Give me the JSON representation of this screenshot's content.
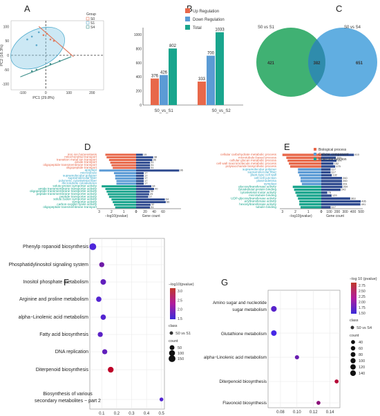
{
  "chart_data": [
    {
      "panel": "A",
      "type": "scatter",
      "xlabel": "PC1 (29.8%)",
      "ylabel": "PC2 (16.3%)",
      "xticks": [
        "-100",
        "0",
        "100",
        "200"
      ],
      "yticks": [
        "100",
        "50",
        "0",
        "-50",
        "-100"
      ],
      "legend_title": "Group",
      "legend": [
        "S0",
        "S1",
        "S4"
      ],
      "series": [
        {
          "name": "S0",
          "color": "#e07b5f",
          "points": [
            [
              -10,
              70
            ],
            [
              20,
              55
            ],
            [
              35,
              50
            ],
            [
              5,
              75
            ]
          ]
        },
        {
          "name": "S1",
          "color": "#5aa7c9",
          "points": [
            [
              -80,
              55
            ],
            [
              -40,
              35
            ],
            [
              -60,
              65
            ],
            [
              -30,
              80
            ]
          ]
        },
        {
          "name": "S4",
          "color": "#3f8f8a",
          "points": [
            [
              -60,
              -55
            ],
            [
              -40,
              -50
            ],
            [
              20,
              -30
            ],
            [
              60,
              -20
            ]
          ]
        }
      ]
    },
    {
      "panel": "B",
      "type": "bar",
      "categories": [
        "S0_vs_S1",
        "S0_vs_S2"
      ],
      "series": [
        {
          "name": "Up Regulation",
          "color": "#e8684a",
          "values": [
            376,
            333
          ]
        },
        {
          "name": "Down Regulation",
          "color": "#5b9bd5",
          "values": [
            426,
            700
          ]
        },
        {
          "name": "Total",
          "color": "#19a58d",
          "values": [
            802,
            1033
          ]
        }
      ],
      "ylim": [
        0,
        1000
      ],
      "yticks": [
        "0",
        "200",
        "400",
        "600",
        "800",
        "1000"
      ],
      "value_labels": [
        "376",
        "426",
        "802",
        "333",
        "700",
        "1033"
      ]
    },
    {
      "panel": "C",
      "type": "venn",
      "sets": [
        {
          "name": "S0 vs S1",
          "color": "#1fa35a",
          "only": 421
        },
        {
          "name": "S0 vs S4",
          "color": "#3a9ad9",
          "only": 651
        }
      ],
      "intersection": 382
    },
    {
      "panel": "D",
      "type": "bar",
      "xlabel_left": "−log10(pvalue)",
      "xlabel_right": "Gene count",
      "left_ticks": [
        "3",
        "2",
        "1",
        "0"
      ],
      "right_ticks": [
        "0",
        "20",
        "40",
        "60"
      ],
      "categories": [
        {
          "label": "iron ion homeostasis",
          "class": "bp",
          "p": 2.5,
          "count": 15
        },
        {
          "label": "mitochondrial transport",
          "class": "bp",
          "p": 2.4,
          "count": 38
        },
        {
          "label": "transition metal ion transport",
          "class": "bp",
          "p": 2.2,
          "count": 36
        },
        {
          "label": "amide transport",
          "class": "bp",
          "p": 2.1,
          "count": 31
        },
        {
          "label": "oligopeptide transmembrane transport",
          "class": "bp",
          "p": 2.0,
          "count": 31
        },
        {
          "label": "oligopeptide transport",
          "class": "bp",
          "p": 1.9,
          "count": 31
        },
        {
          "label": "apoplast",
          "class": "cc",
          "p": 3.0,
          "count": 96
        },
        {
          "label": "microtubule",
          "class": "cc",
          "p": 1.8,
          "count": 17
        },
        {
          "label": "supramolecular polymer",
          "class": "cc",
          "p": 1.7,
          "count": 17
        },
        {
          "label": "supramolecular fiber",
          "class": "cc",
          "p": 1.7,
          "count": 17
        },
        {
          "label": "polymeric cytoskeletal fiber",
          "class": "cc",
          "p": 1.6,
          "count": 17
        },
        {
          "label": "microtubule cytoskeleton",
          "class": "cc",
          "p": 1.6,
          "count": 17
        },
        {
          "label": "solute:proton symporter activity",
          "class": "mf",
          "p": 2.8,
          "count": 34
        },
        {
          "label": "amide transmembrane transporter activity",
          "class": "mf",
          "p": 2.5,
          "count": 40
        },
        {
          "label": "oligopeptide transmembrane transporter activity",
          "class": "mf",
          "p": 2.4,
          "count": 30
        },
        {
          "label": "peptide transmembrane transporter activity",
          "class": "mf",
          "p": 2.3,
          "count": 29
        },
        {
          "label": "peptide transporter activity",
          "class": "mf",
          "p": 2.2,
          "count": 27
        },
        {
          "label": "solute:cation symporter activity",
          "class": "mf",
          "p": 2.0,
          "count": 64
        },
        {
          "label": "symporter activity",
          "class": "mf",
          "p": 1.9,
          "count": 66
        },
        {
          "label": "carbon-oxygen lyase activity",
          "class": "mf",
          "p": 1.8,
          "count": 32
        },
        {
          "label": "oligopeptide transmembrane transport",
          "class": "mf",
          "p": 1.7,
          "count": 31
        }
      ],
      "count_labels": [
        "15",
        "38",
        "36",
        "31",
        "31",
        "31",
        "96",
        "17",
        "17",
        "17",
        "17",
        "17",
        "34",
        "40",
        "30",
        "29",
        "27",
        "64",
        "66",
        "32",
        "31"
      ]
    },
    {
      "panel": "E",
      "type": "bar",
      "xlabel_left": "−log10(pvalue)",
      "xlabel_right": "Gene count",
      "left_ticks": [
        "3",
        "2",
        "1",
        "0"
      ],
      "right_ticks": [
        "0",
        "100",
        "200",
        "300",
        "400",
        "500"
      ],
      "legend": [
        {
          "name": "Biological process",
          "color": "#e8684a"
        },
        {
          "name": "Cellular component",
          "color": "#5b9bd5"
        },
        {
          "name": "Molecular function",
          "color": "#19a58d"
        }
      ],
      "categories": [
        {
          "label": "cellular carbohydrate metabolic process",
          "class": "bp",
          "p": 3.0,
          "count": 410
        },
        {
          "label": "microtubule-based process",
          "class": "bp",
          "p": 2.7,
          "count": 183
        },
        {
          "label": "cellular glucan metabolic process",
          "class": "bp",
          "p": 2.6,
          "count": 191
        },
        {
          "label": "cell wall macromolecule metabolic process",
          "class": "bp",
          "p": 2.5,
          "count": 152
        },
        {
          "label": "polysaccharide biosynthetic process",
          "class": "bp",
          "p": 2.4,
          "count": 175
        },
        {
          "label": "supramolecular polymer",
          "class": "cc",
          "p": 1.8,
          "count": 117
        },
        {
          "label": "supramolecular fiber",
          "class": "cc",
          "p": 1.8,
          "count": 117
        },
        {
          "label": "plant-type cell wall",
          "class": "cc",
          "p": 1.7,
          "count": 132
        },
        {
          "label": "cell-cell junction",
          "class": "cc",
          "p": 1.6,
          "count": 260
        },
        {
          "label": "plasmodesma",
          "class": "cc",
          "p": 1.6,
          "count": 260
        },
        {
          "label": "symplast",
          "class": "cc",
          "p": 1.5,
          "count": 261
        },
        {
          "label": "glucosyltransferase activity",
          "class": "mf",
          "p": 2.2,
          "count": 264
        },
        {
          "label": "cytoskeletal protein binding",
          "class": "mf",
          "p": 2.1,
          "count": 242
        },
        {
          "label": "cytoskeletal motor activity",
          "class": "mf",
          "p": 2.0,
          "count": 75
        },
        {
          "label": "microtubule binding",
          "class": "mf",
          "p": 1.9,
          "count": 129
        },
        {
          "label": "UDP-glycosyltransferase activity",
          "class": "mf",
          "p": 1.8,
          "count": 363
        },
        {
          "label": "acyltransferase activity",
          "class": "mf",
          "p": 1.7,
          "count": 495
        },
        {
          "label": "hexosyltransferase activity",
          "class": "mf",
          "p": 1.7,
          "count": 491
        },
        {
          "label": "tubulin binding",
          "class": "mf",
          "p": 1.6,
          "count": 117
        }
      ],
      "count_labels": [
        "410",
        "183",
        "191",
        "152",
        "175",
        "117",
        "117",
        "132",
        "260",
        "260",
        "261",
        "264",
        "242",
        "75",
        "129",
        "363",
        "495",
        "491",
        "117"
      ]
    },
    {
      "panel": "F",
      "type": "scatter",
      "pathways": [
        "Phenylp ropanoid biosynthesis",
        "Phosphatidylinositol signaling system",
        "Inositol phosphate metabolism",
        "Arginine and proline metabolism",
        "alpha−Linolenic acid metabolism",
        "Fatty acid biosynthesis",
        "DNA replication",
        "Diterpenoid biosynthesis",
        "Biosynthesis of various",
        "secondary metabolites − part 2"
      ],
      "x": [
        0.04,
        0.1,
        0.11,
        0.08,
        0.11,
        0.09,
        0.12,
        0.16,
        0.5
      ],
      "count": [
        150,
        60,
        80,
        70,
        70,
        60,
        60,
        90,
        20
      ],
      "logp": [
        1.5,
        2.0,
        1.8,
        1.6,
        1.6,
        1.7,
        1.8,
        3.2,
        1.6
      ],
      "xticks": [
        "0.1",
        "0.2",
        "0.3",
        "0.4",
        "0.5"
      ],
      "colorbar_title": "−log10(pvalue)",
      "colorbar_ticks": [
        "3.0",
        "2.5",
        "2.0",
        "1.5"
      ],
      "class_title": "class",
      "class_name": "S0 vs S1",
      "count_title": "count",
      "count_legend": [
        "50",
        "100",
        "150"
      ]
    },
    {
      "panel": "G",
      "type": "scatter",
      "pathways": [
        "Amino sugar and nucleotide",
        "sugar metabolism",
        "Glutathione metabolism",
        "alpha−Linolenic acid metabolism",
        "Diterpenoid biosynthesis",
        "Flavonoid biosynthesis"
      ],
      "x": [
        0.072,
        0.072,
        0.1,
        0.148,
        0.126
      ],
      "count": [
        140,
        130,
        50,
        40,
        40
      ],
      "logp": [
        1.6,
        1.4,
        1.8,
        2.7,
        2.2
      ],
      "xticks": [
        "0.08",
        "0.10",
        "0.12",
        "0.14"
      ],
      "colorbar_title": "−log 10 (pvalue)",
      "colorbar_ticks": [
        "2.75",
        "2.50",
        "2.25",
        "2.00",
        "1.75",
        "1.50"
      ],
      "class_title": "class",
      "class_name": "S0 vs S4",
      "count_title": "count",
      "count_legend": [
        "40",
        "60",
        "80",
        "100",
        "120",
        "140"
      ]
    }
  ],
  "panel_letters": [
    "A",
    "B",
    "C",
    "D",
    "E",
    "F",
    "G"
  ]
}
